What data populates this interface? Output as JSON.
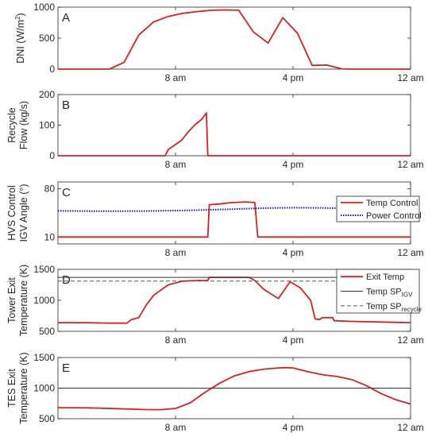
{
  "chart_data": [
    {
      "type": "line",
      "panel_label": "A",
      "ylabel": [
        "DNI (W/m",
        "2",
        ")"
      ],
      "ylim": [
        0,
        1000
      ],
      "yticks": [
        "0",
        "500",
        "1000"
      ],
      "xticks": [
        {
          "x": 8,
          "label": "8 am"
        },
        {
          "x": 16,
          "label": "4 pm"
        },
        {
          "x": 24,
          "label": "12 am"
        }
      ],
      "xlim": [
        0,
        24
      ],
      "series": [
        {
          "color": "#d92020",
          "style": "solid",
          "points": [
            [
              0,
              0
            ],
            [
              3.5,
              0
            ],
            [
              4.5,
              110
            ],
            [
              5.5,
              550
            ],
            [
              6.5,
              760
            ],
            [
              7.5,
              850
            ],
            [
              8.5,
              900
            ],
            [
              9.5,
              930
            ],
            [
              10.5,
              950
            ],
            [
              11.5,
              955
            ],
            [
              12.3,
              950
            ],
            [
              13.3,
              600
            ],
            [
              14.3,
              420
            ],
            [
              15.3,
              830
            ],
            [
              16.3,
              580
            ],
            [
              17.3,
              60
            ],
            [
              18.3,
              65
            ],
            [
              19.3,
              5
            ],
            [
              20,
              0
            ],
            [
              24,
              0
            ]
          ]
        }
      ]
    },
    {
      "type": "line",
      "panel_label": "B",
      "ylabel": [
        "Recycle",
        "Flow (kg/s)"
      ],
      "ylim": [
        0,
        200
      ],
      "yticks": [
        "0",
        "100",
        "200"
      ],
      "xticks": [
        {
          "x": 8,
          "label": "8 am"
        },
        {
          "x": 16,
          "label": "4 pm"
        },
        {
          "x": 24,
          "label": "12 am"
        }
      ],
      "xlim": [
        0,
        24
      ],
      "series": [
        {
          "color": "#d92020",
          "style": "solid",
          "points": [
            [
              0,
              0
            ],
            [
              7.3,
              0
            ],
            [
              7.5,
              20
            ],
            [
              8.4,
              50
            ],
            [
              8.9,
              80
            ],
            [
              9.3,
              100
            ],
            [
              9.8,
              120
            ],
            [
              10.1,
              140
            ],
            [
              10.2,
              0
            ],
            [
              24,
              0
            ]
          ]
        }
      ]
    },
    {
      "type": "line",
      "panel_label": "C",
      "ylabel": [
        "HVS Control",
        "IGV Angle (°)"
      ],
      "ylim": [
        0,
        90
      ],
      "yticks": [
        {
          "v": 10,
          "label": "10"
        },
        {
          "v": 80,
          "label": "80"
        }
      ],
      "xticks": [
        {
          "x": 8,
          "label": "8 am"
        },
        {
          "x": 16,
          "label": "4 pm"
        },
        {
          "x": 24,
          "label": "12 am"
        }
      ],
      "xlim": [
        0,
        24
      ],
      "legend": [
        "Temp Control",
        "Power Control"
      ],
      "legend_position": "right",
      "series": [
        {
          "name": "Temp Control",
          "color": "#d92020",
          "style": "solid",
          "points": [
            [
              0,
              10
            ],
            [
              10.2,
              10
            ],
            [
              10.3,
              57
            ],
            [
              11,
              58
            ],
            [
              11.8,
              60
            ],
            [
              12.8,
              61
            ],
            [
              13.4,
              60
            ],
            [
              13.6,
              10
            ],
            [
              24,
              10
            ]
          ]
        },
        {
          "name": "Power Control",
          "color": "#1a1ab3",
          "style": "dotted",
          "points": [
            [
              0,
              48
            ],
            [
              3,
              47.5
            ],
            [
              6,
              47.8
            ],
            [
              9,
              48.8
            ],
            [
              12,
              50.5
            ],
            [
              14,
              52
            ],
            [
              16,
              52.6
            ],
            [
              18,
              52.3
            ],
            [
              20,
              51.5
            ],
            [
              22,
              51
            ],
            [
              24,
              50.5
            ]
          ]
        }
      ]
    },
    {
      "type": "line",
      "panel_label": "D",
      "ylabel": [
        "Tower Exit",
        "Temperature (K)"
      ],
      "ylim": [
        500,
        1500
      ],
      "yticks": [
        "500",
        "1000",
        "1500"
      ],
      "xticks": [
        {
          "x": 8,
          "label": "8 am"
        },
        {
          "x": 16,
          "label": "4 pm"
        },
        {
          "x": 24,
          "label": "12 am"
        }
      ],
      "xlim": [
        0,
        24
      ],
      "legend": [
        "Exit Temp",
        "Temp SP",
        "Temp SP"
      ],
      "legend_subscripts": [
        "",
        "IGV",
        "recycle"
      ],
      "legend_position": "right",
      "series": [
        {
          "name": "Exit Temp",
          "color": "#d92020",
          "style": "solid",
          "points": [
            [
              0,
              640
            ],
            [
              2,
              638
            ],
            [
              3.5,
              632
            ],
            [
              4.7,
              632
            ],
            [
              5,
              690
            ],
            [
              5.5,
              720
            ],
            [
              6,
              920
            ],
            [
              6.5,
              1080
            ],
            [
              7.5,
              1250
            ],
            [
              8.5,
              1310
            ],
            [
              9.5,
              1320
            ],
            [
              10.2,
              1320
            ],
            [
              10.3,
              1370
            ],
            [
              11,
              1370
            ],
            [
              12,
              1370
            ],
            [
              13,
              1370
            ],
            [
              13.4,
              1320
            ],
            [
              14,
              1180
            ],
            [
              15,
              1030
            ],
            [
              15.8,
              1300
            ],
            [
              16.5,
              1200
            ],
            [
              17.2,
              1000
            ],
            [
              17.5,
              700
            ],
            [
              17.8,
              690
            ],
            [
              18,
              720
            ],
            [
              18.7,
              720
            ],
            [
              18.8,
              670
            ],
            [
              20,
              660
            ],
            [
              22,
              650
            ],
            [
              24,
              640
            ]
          ]
        },
        {
          "name": "Temp SP IGV",
          "color": "#333333",
          "style": "solid",
          "points": [
            [
              0,
              1370
            ],
            [
              24,
              1370
            ]
          ]
        },
        {
          "name": "Temp SP recycle",
          "color": "#555555",
          "style": "dashed",
          "points": [
            [
              0,
              1310
            ],
            [
              24,
              1310
            ]
          ]
        }
      ]
    },
    {
      "type": "line",
      "panel_label": "E",
      "ylabel": [
        "TES Exit",
        "Temperature (K)"
      ],
      "ylim": [
        500,
        1500
      ],
      "yticks": [
        "500",
        "1000",
        "1500"
      ],
      "xticks": [
        {
          "x": 8,
          "label": "8 am"
        },
        {
          "x": 16,
          "label": "4 pm"
        },
        {
          "x": 24,
          "label": "12 am"
        }
      ],
      "xlim": [
        0,
        24
      ],
      "series": [
        {
          "color": "#d92020",
          "style": "solid",
          "points": [
            [
              0,
              680
            ],
            [
              2,
              678
            ],
            [
              4,
              665
            ],
            [
              6,
              650
            ],
            [
              7,
              648
            ],
            [
              8,
              668
            ],
            [
              9,
              760
            ],
            [
              10,
              930
            ],
            [
              11,
              1080
            ],
            [
              12,
              1200
            ],
            [
              13,
              1270
            ],
            [
              14,
              1310
            ],
            [
              15,
              1330
            ],
            [
              15.5,
              1335
            ],
            [
              16,
              1330
            ],
            [
              17,
              1270
            ],
            [
              18,
              1220
            ],
            [
              19,
              1190
            ],
            [
              20,
              1140
            ],
            [
              21,
              1040
            ],
            [
              22,
              910
            ],
            [
              23,
              810
            ],
            [
              24,
              740
            ]
          ]
        },
        {
          "color": "#333333",
          "style": "solid",
          "points": [
            [
              0,
              1000
            ],
            [
              24,
              1000
            ]
          ]
        }
      ]
    }
  ]
}
